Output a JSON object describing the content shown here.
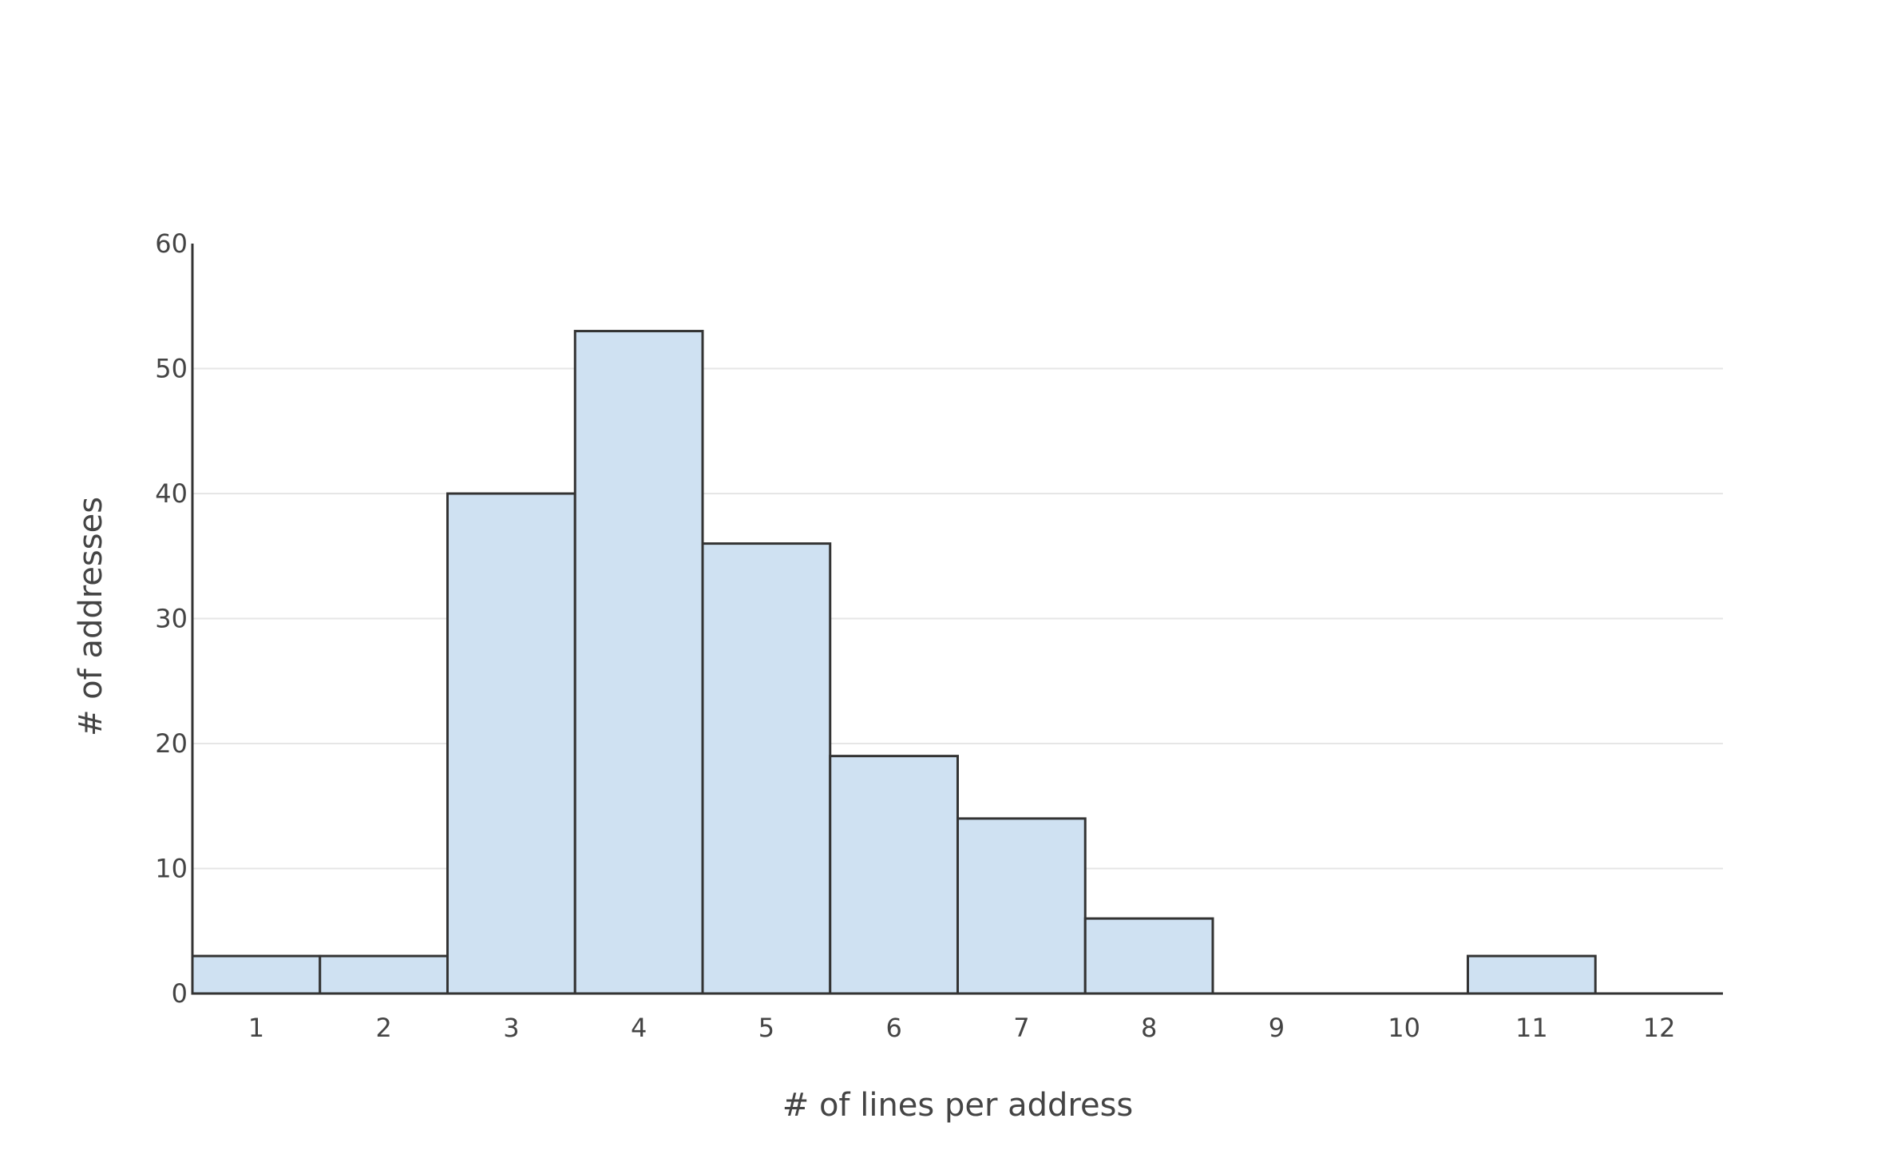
{
  "chart_data": {
    "type": "bar",
    "title": "",
    "xlabel": "# of lines per address",
    "ylabel": "# of addresses",
    "categories": [
      1,
      2,
      3,
      4,
      5,
      6,
      7,
      8,
      9,
      10,
      11,
      12
    ],
    "values": [
      3,
      3,
      40,
      53,
      36,
      19,
      14,
      6,
      0,
      0,
      3,
      0
    ],
    "x_tick_labels": [
      "1",
      "2",
      "3",
      "4",
      "5",
      "6",
      "7",
      "8",
      "9",
      "10",
      "11",
      "12"
    ],
    "y_tick_labels": [
      "0",
      "10",
      "20",
      "30",
      "40",
      "50",
      "60"
    ],
    "y_ticks": [
      0,
      10,
      20,
      30,
      40,
      50,
      60
    ],
    "ylim": [
      0,
      60
    ],
    "grid": true,
    "legend": "none",
    "colors": {
      "bar_fill": "#cfe1f2",
      "bar_stroke": "#333333"
    }
  }
}
